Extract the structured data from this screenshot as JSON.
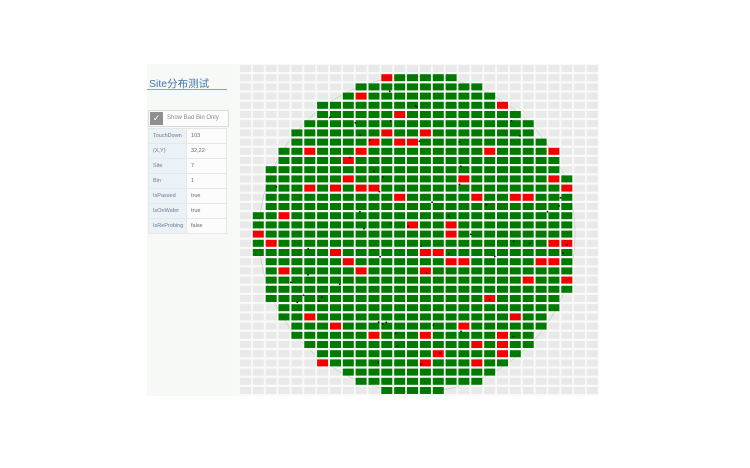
{
  "panel": {
    "title": "Site分布测试",
    "show_bad_bin_only": {
      "label": "Show Bad Bin Only",
      "checked": true,
      "check_glyph": "✓"
    },
    "info": [
      {
        "key": "TouchDown",
        "value": "103"
      },
      {
        "key": "(X,Y)",
        "value": "32,22"
      },
      {
        "key": "Site",
        "value": "7"
      },
      {
        "key": "Bin",
        "value": "1"
      },
      {
        "key": "IsPassed",
        "value": "true"
      },
      {
        "key": "IsOnWafer",
        "value": "true"
      },
      {
        "key": "IsReProbing",
        "value": "false"
      }
    ]
  },
  "wafer_map": {
    "columns": 28,
    "rows": 36,
    "colors": {
      "pass": "#007a00",
      "fail": "#f50000",
      "empty": "#e9e9e9",
      "selected": "#cde9cd",
      "outline": "#333333"
    },
    "selected_die_count": 2
  }
}
